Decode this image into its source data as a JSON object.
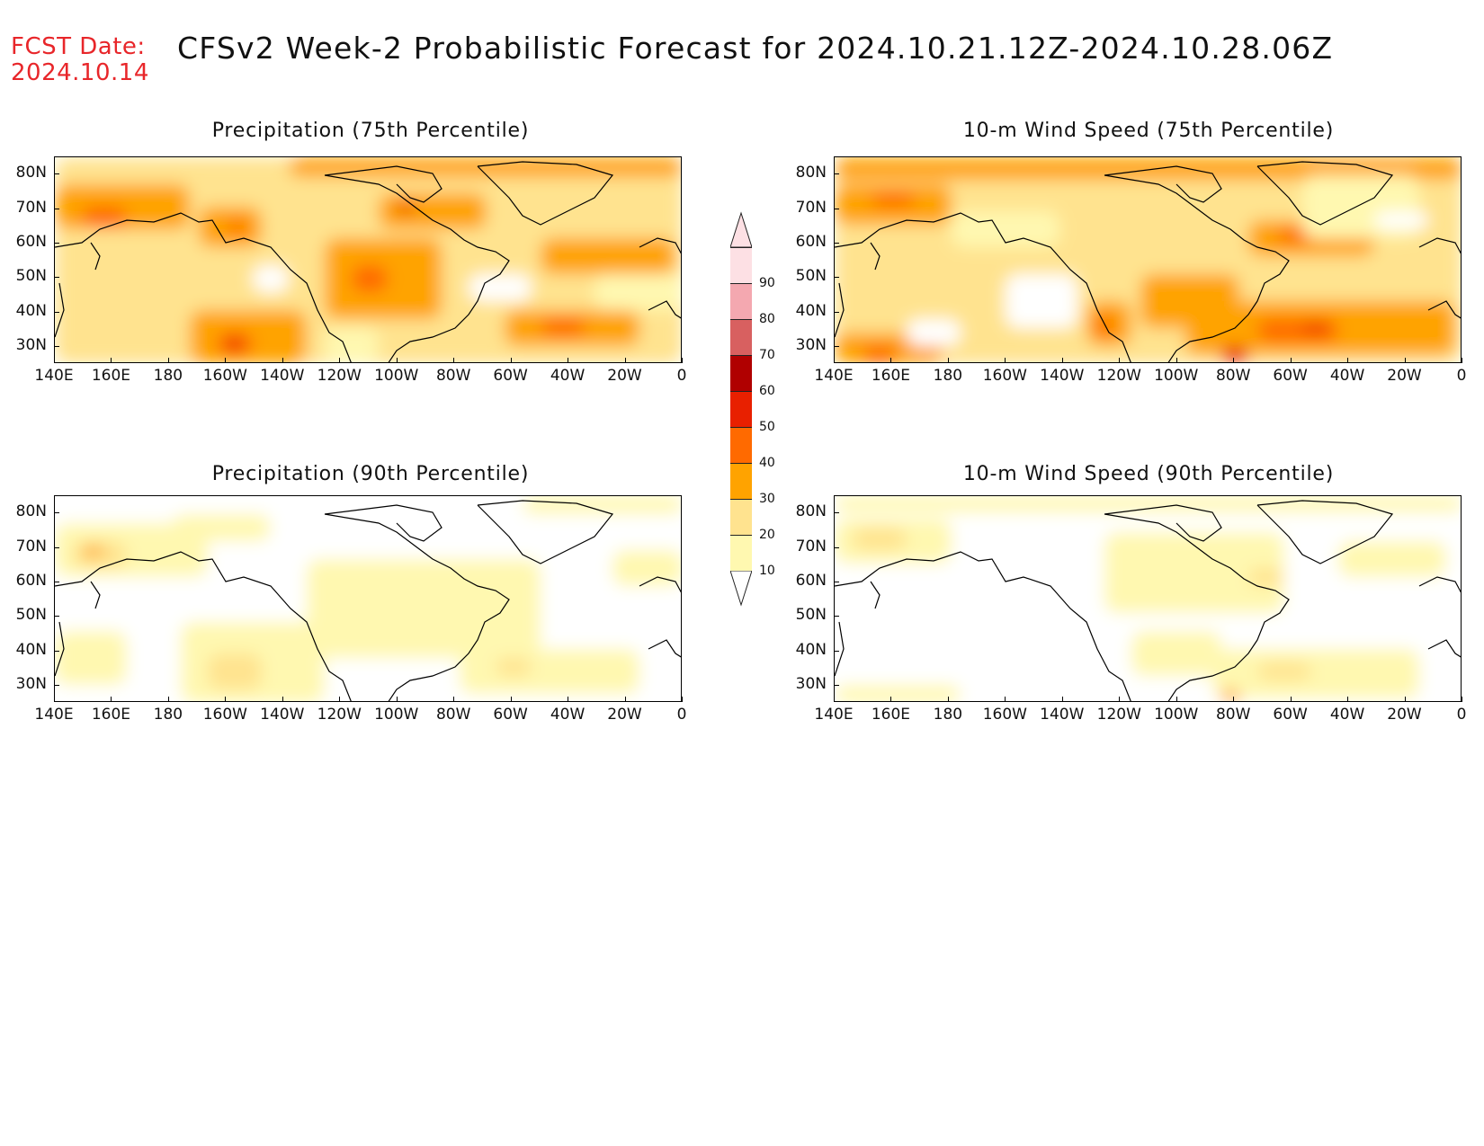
{
  "header": {
    "fcst_label": "FCST Date:",
    "fcst_date": "2024.10.14",
    "title": "CFSv2 Week-2 Probabilistic Forecast for 2024.10.21.12Z-2024.10.28.06Z"
  },
  "panels": [
    {
      "title": "Precipitation (75th Percentile)"
    },
    {
      "title": "10-m Wind Speed (75th Percentile)"
    },
    {
      "title": "Precipitation (90th Percentile)"
    },
    {
      "title": "10-m Wind Speed (90th Percentile)"
    }
  ],
  "axes": {
    "lat_labels": [
      "80N",
      "70N",
      "60N",
      "50N",
      "40N",
      "30N"
    ],
    "lon_labels": [
      "140E",
      "160E",
      "180",
      "160W",
      "140W",
      "120W",
      "100W",
      "80W",
      "60W",
      "40W",
      "20W",
      "0"
    ]
  },
  "colorbar": {
    "labels": [
      "10",
      "20",
      "30",
      "40",
      "50",
      "60",
      "70",
      "80",
      "90"
    ],
    "colors": [
      "#ffffff",
      "#fff8b0",
      "#ffe38f",
      "#ffa300",
      "#ff6a00",
      "#e82000",
      "#b00000",
      "#d86060",
      "#f4a8b0",
      "#fde0e4"
    ]
  },
  "colors": {
    "fcst_red": "#e8262a"
  }
}
